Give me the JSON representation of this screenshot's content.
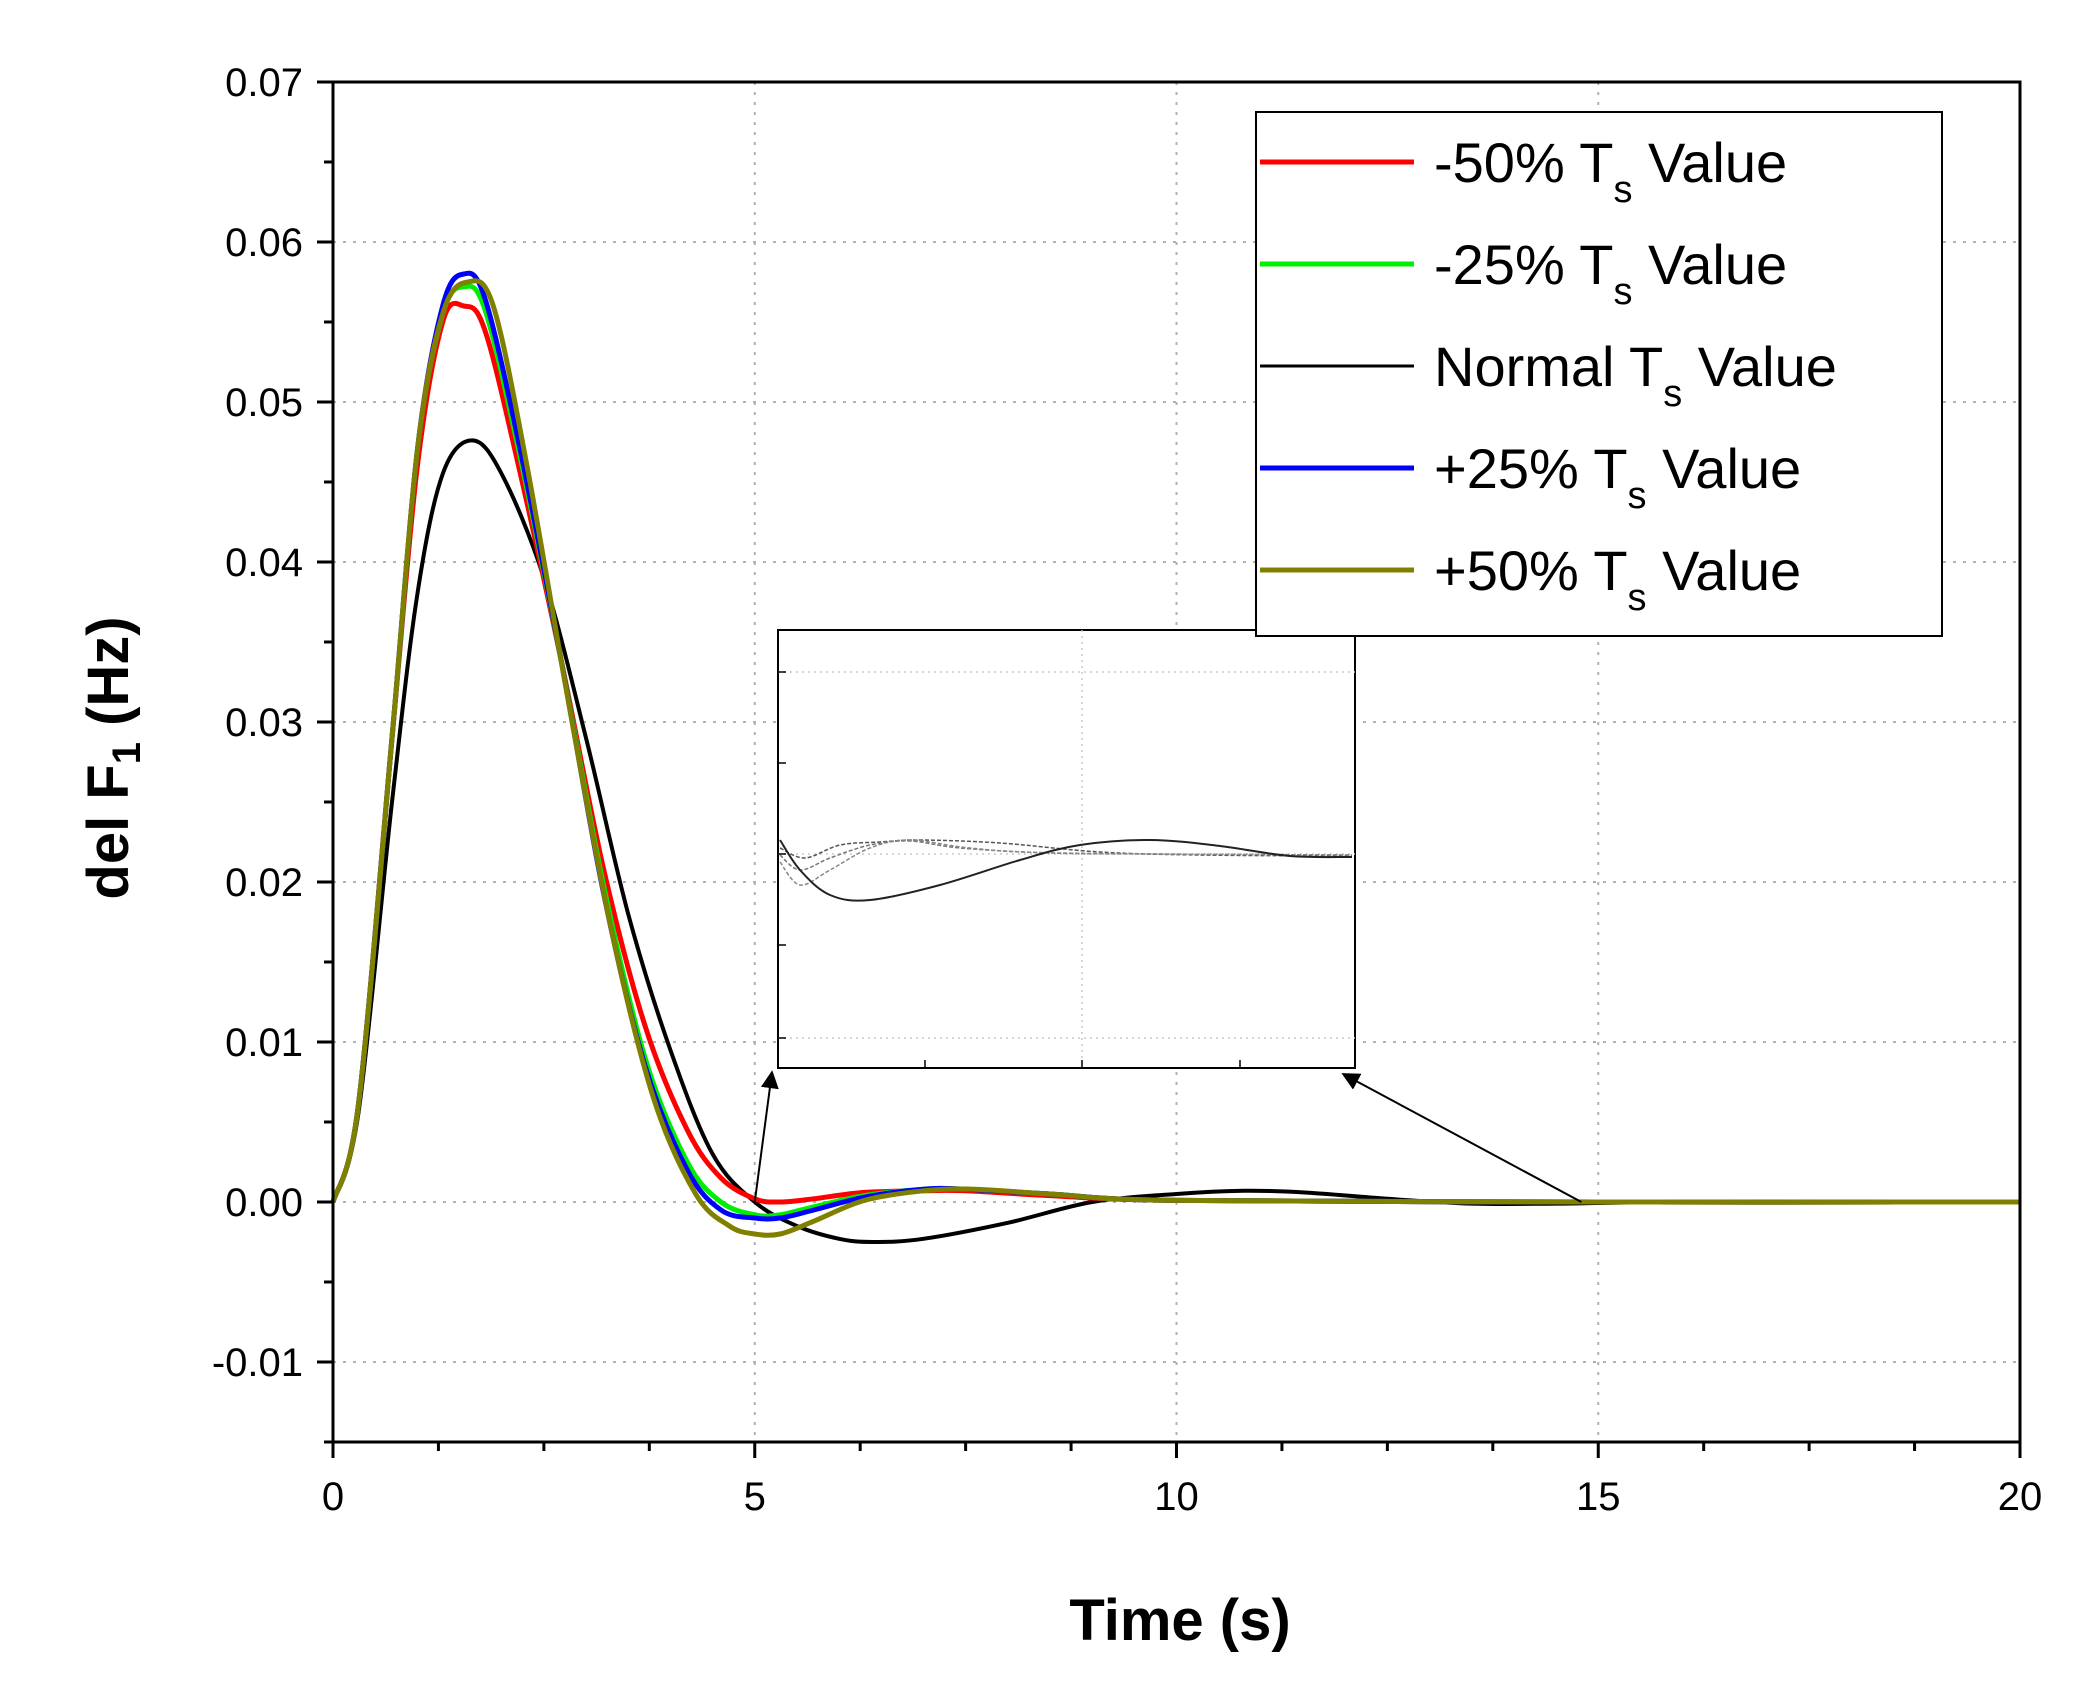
{
  "chart_data": {
    "type": "line",
    "xlabel": "Time (s)",
    "ylabel": {
      "main": "del F",
      "sub": "1",
      "unit": " (Hz)"
    },
    "xlim": [
      0,
      20
    ],
    "ylim": [
      -0.015,
      0.07
    ],
    "xticks": [
      0,
      5,
      10,
      15,
      20
    ],
    "xtick_labels": [
      "0",
      "5",
      "10",
      "15",
      "20"
    ],
    "yticks": [
      -0.01,
      0.0,
      0.01,
      0.02,
      0.03,
      0.04,
      0.05,
      0.06,
      0.07
    ],
    "ytick_labels": [
      "-0.01",
      "0.00",
      "0.01",
      "0.02",
      "0.03",
      "0.04",
      "0.05",
      "0.06",
      "0.07"
    ],
    "grid": true,
    "legend_position": "top-right",
    "series": [
      {
        "name": "-50% T",
        "sub": "s",
        "suffix": " Value",
        "color": "#ff0000",
        "x": [
          0,
          0.3,
          0.7,
          1.0,
          1.3,
          1.55,
          1.8,
          2.2,
          2.7,
          3.2,
          3.7,
          4.2,
          4.6,
          5.0,
          5.3,
          5.7,
          6.3,
          7.0,
          7.5,
          8.5,
          10,
          15,
          20
        ],
        "y": [
          0,
          0.006,
          0.029,
          0.046,
          0.055,
          0.056,
          0.0545,
          0.046,
          0.034,
          0.021,
          0.011,
          0.0045,
          0.0015,
          0.0002,
          0.0,
          0.0002,
          0.0006,
          0.0007,
          0.0007,
          0.0004,
          0.0001,
          0,
          0
        ]
      },
      {
        "name": "-25% T",
        "sub": "s",
        "suffix": " Value",
        "color": "#00ee00",
        "x": [
          0,
          0.3,
          0.7,
          1.0,
          1.3,
          1.55,
          1.8,
          2.2,
          2.7,
          3.2,
          3.7,
          4.2,
          4.6,
          5.0,
          5.3,
          5.7,
          6.3,
          7.0,
          7.5,
          8.5,
          10,
          15,
          20
        ],
        "y": [
          0,
          0.006,
          0.029,
          0.047,
          0.0555,
          0.0572,
          0.0558,
          0.047,
          0.034,
          0.02,
          0.009,
          0.0025,
          0.0,
          -0.0008,
          -0.0008,
          -0.0003,
          0.0004,
          0.0008,
          0.0008,
          0.0005,
          0.0001,
          0,
          0
        ]
      },
      {
        "name": "Normal T",
        "sub": "s",
        "suffix": " Value",
        "color": "#000000",
        "x": [
          0,
          0.3,
          0.7,
          1.0,
          1.3,
          1.65,
          2.0,
          2.5,
          3.0,
          3.5,
          4.0,
          4.5,
          5.0,
          5.5,
          6.0,
          6.4,
          7.0,
          8.0,
          9.0,
          10.0,
          10.8,
          11.5,
          12.5,
          13.5,
          14.5,
          16,
          20
        ],
        "y": [
          0,
          0.0055,
          0.025,
          0.038,
          0.0455,
          0.0476,
          0.0455,
          0.039,
          0.029,
          0.018,
          0.0095,
          0.003,
          0.0,
          -0.0015,
          -0.0023,
          -0.0025,
          -0.0023,
          -0.0013,
          0.0,
          0.0005,
          0.0007,
          0.0006,
          0.0002,
          -0.0001,
          -0.0001,
          0,
          0
        ]
      },
      {
        "name": "+25% T",
        "sub": "s",
        "suffix": " Value",
        "color": "#0000ff",
        "x": [
          0,
          0.3,
          0.7,
          1.0,
          1.3,
          1.55,
          1.8,
          2.2,
          2.7,
          3.2,
          3.7,
          4.2,
          4.6,
          5.0,
          5.3,
          5.7,
          6.3,
          7.0,
          7.5,
          8.5,
          10,
          15,
          20
        ],
        "y": [
          0,
          0.006,
          0.029,
          0.047,
          0.056,
          0.058,
          0.0565,
          0.0475,
          0.034,
          0.0195,
          0.0085,
          0.002,
          -0.0005,
          -0.001,
          -0.001,
          -0.0005,
          0.0003,
          0.0008,
          0.0008,
          0.0005,
          0.0001,
          0,
          0
        ]
      },
      {
        "name": "+50% T",
        "sub": "s",
        "suffix": " Value",
        "color": "#808000",
        "x": [
          0,
          0.3,
          0.7,
          1.0,
          1.3,
          1.6,
          1.9,
          2.3,
          2.8,
          3.3,
          3.8,
          4.3,
          4.7,
          5.0,
          5.3,
          5.7,
          6.3,
          7.0,
          7.6,
          8.5,
          10,
          15,
          20
        ],
        "y": [
          0,
          0.006,
          0.029,
          0.047,
          0.0555,
          0.0575,
          0.056,
          0.046,
          0.031,
          0.017,
          0.0065,
          0.0005,
          -0.0015,
          -0.002,
          -0.002,
          -0.0012,
          0.0001,
          0.0007,
          0.0008,
          0.0005,
          0.0001,
          0,
          0
        ]
      }
    ],
    "inset": {
      "description": "magnified view",
      "arrow_targets": "x=5 and x=15 on y=0"
    }
  }
}
